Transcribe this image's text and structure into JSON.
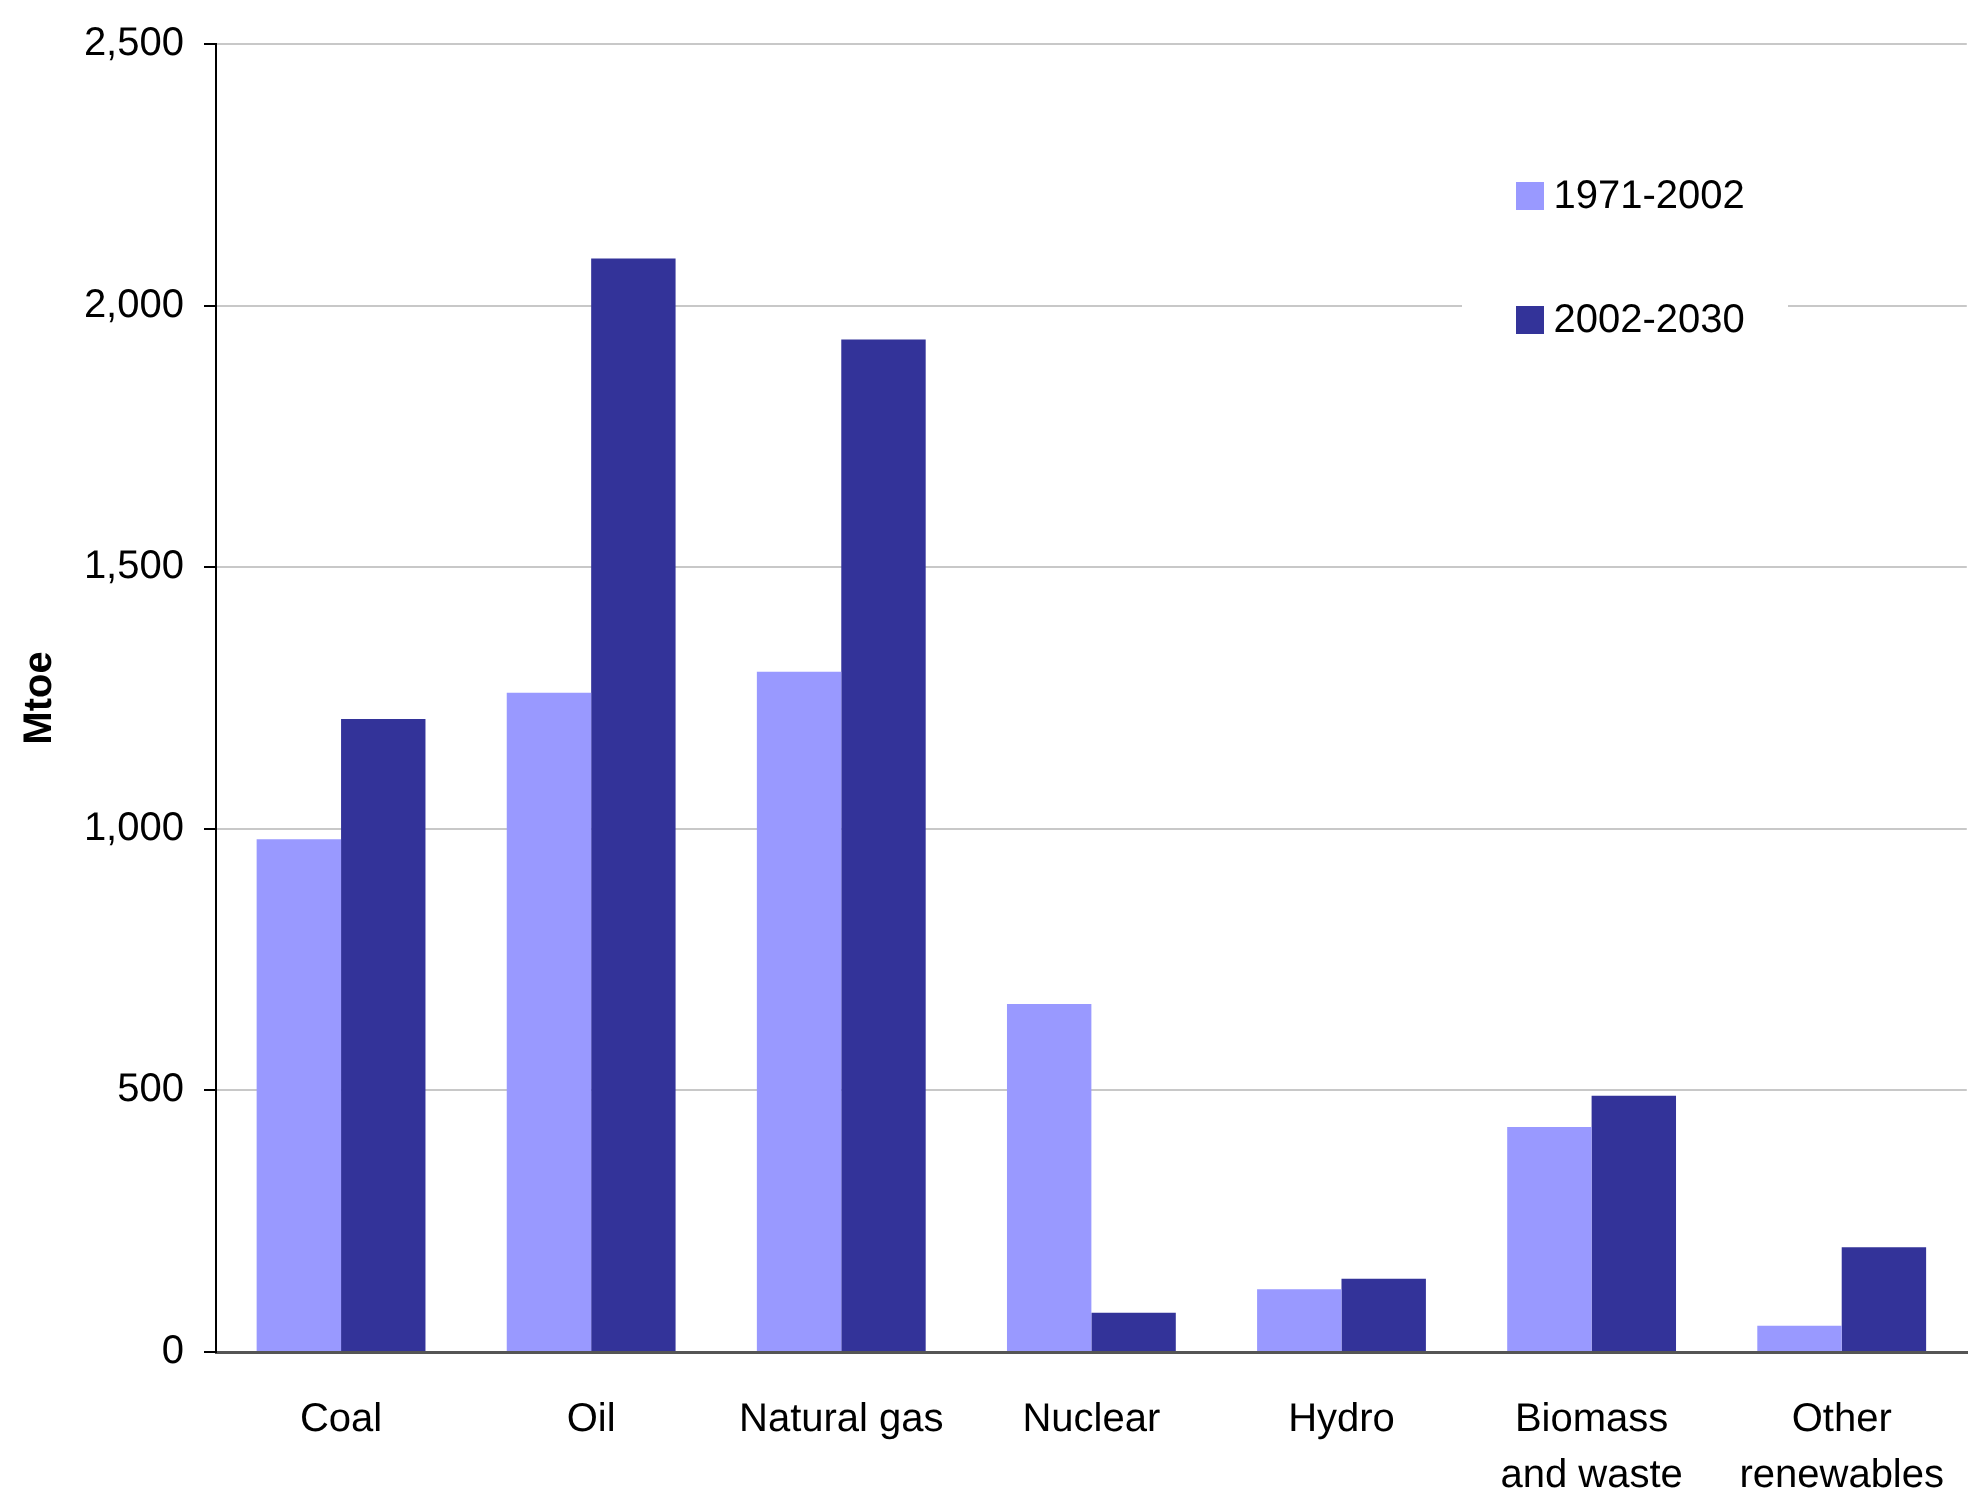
{
  "chart_data": {
    "type": "bar",
    "ylabel": "Mtoe",
    "categories": [
      "Coal",
      "Oil",
      "Natural gas",
      "Nuclear",
      "Hydro",
      "Biomass and waste",
      "Other renewables"
    ],
    "series": [
      {
        "name": "1971-2002",
        "color": "#9999ff",
        "values": [
          980,
          1260,
          1300,
          665,
          120,
          430,
          50
        ]
      },
      {
        "name": "2002-2030",
        "color": "#333399",
        "values": [
          1210,
          2090,
          1935,
          75,
          140,
          490,
          200
        ]
      }
    ],
    "ylim": [
      0,
      2500
    ],
    "yticks": [
      0,
      500,
      {
        "value": 1000,
        "label": "1,000"
      },
      {
        "value": 1500,
        "label": "1,500"
      },
      {
        "value": 2000,
        "label": "2,000"
      },
      {
        "value": 2500,
        "label": "2,500"
      }
    ],
    "grid": "y",
    "legend": "top right"
  }
}
